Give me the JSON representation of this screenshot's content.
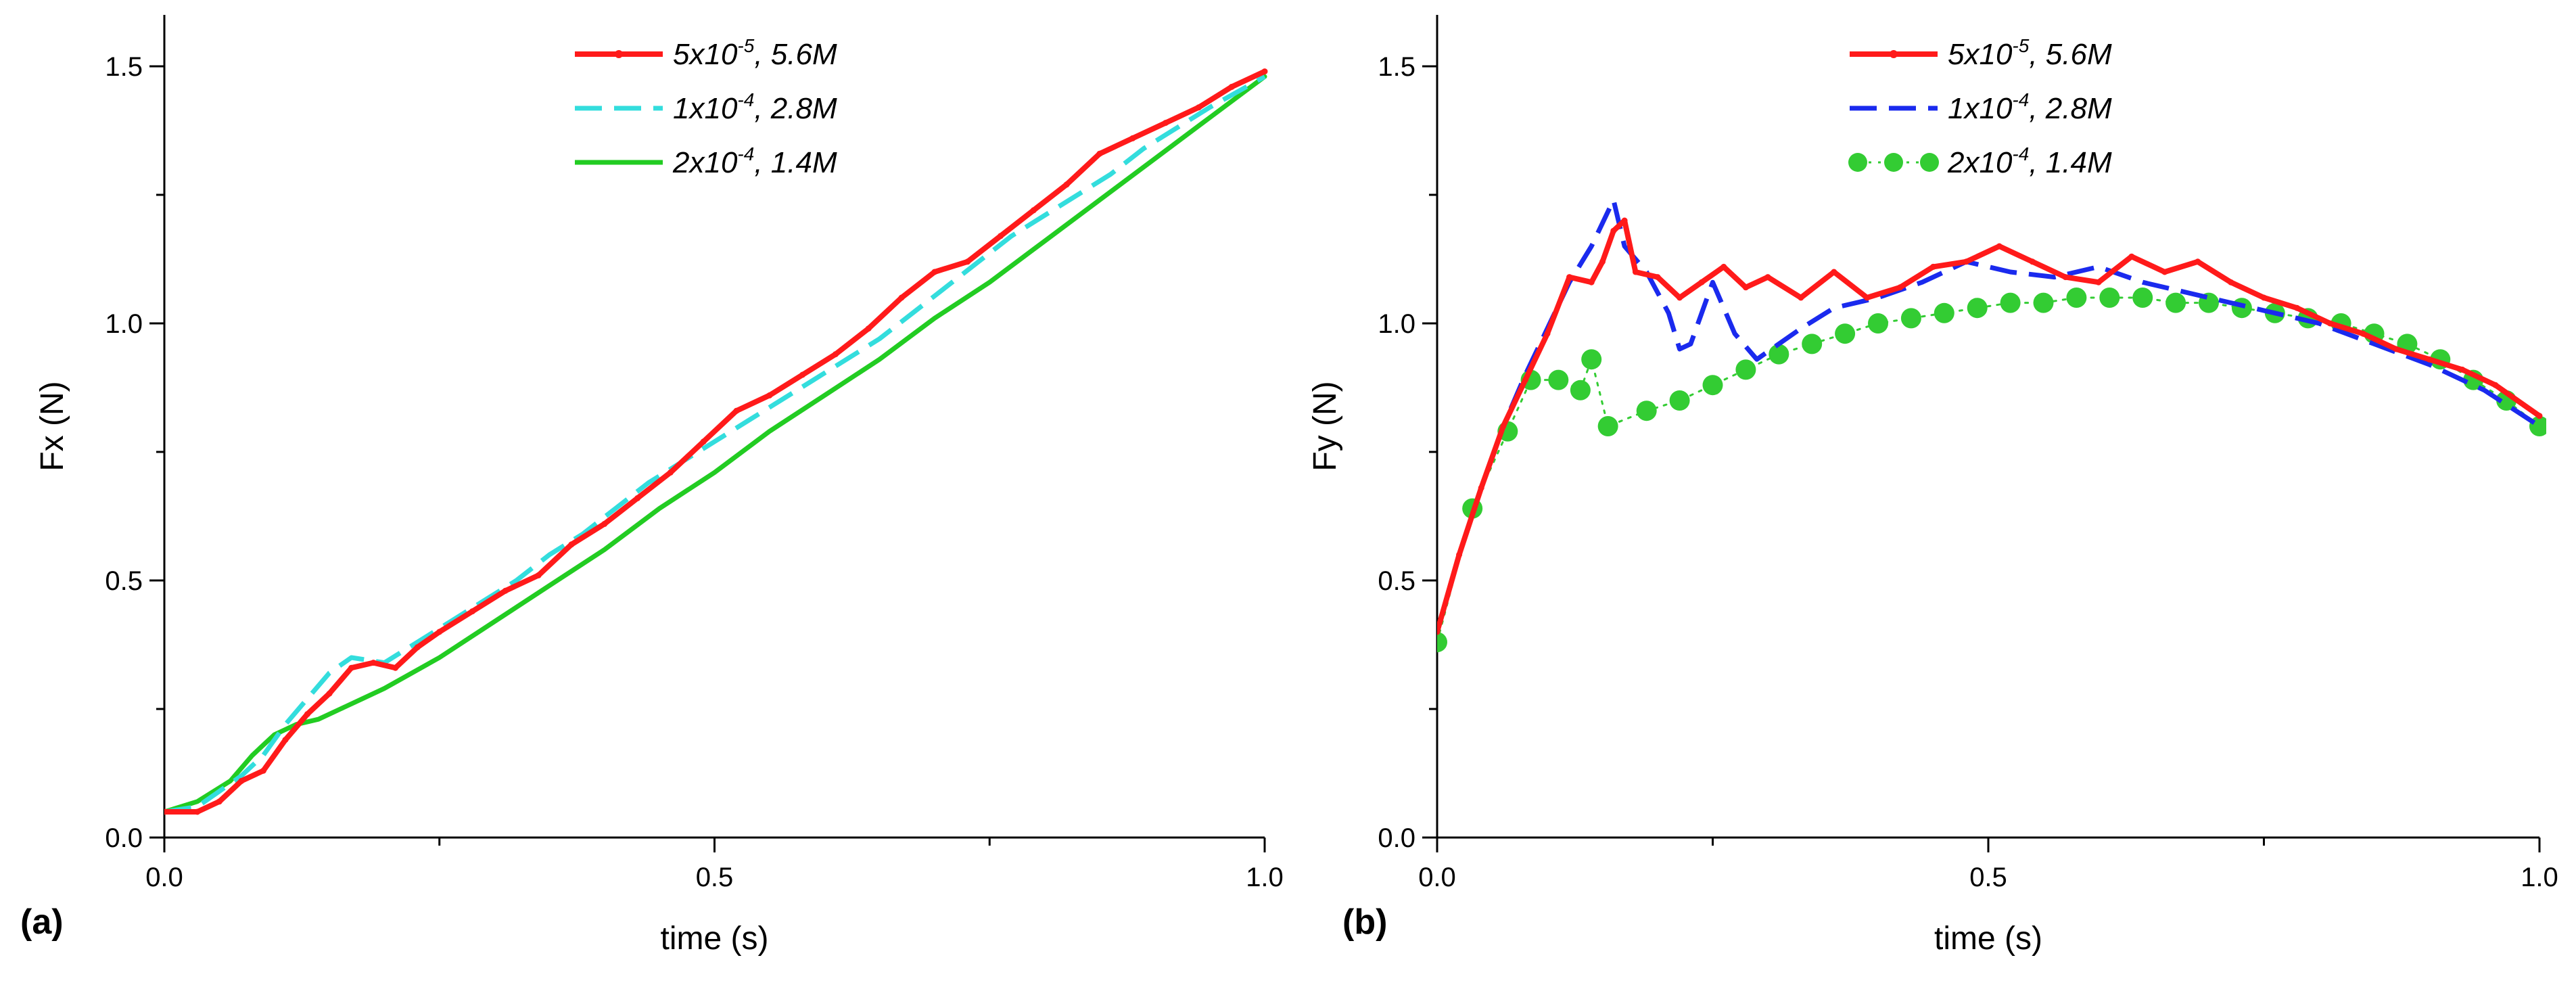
{
  "chart_data": [
    {
      "type": "line",
      "panel_label": "(a)",
      "xlabel": "time (s)",
      "ylabel": "Fx (N)",
      "xlim": [
        0.0,
        1.0
      ],
      "ylim": [
        0.0,
        1.6
      ],
      "xticks": [
        "0.0",
        "0.5",
        "1.0"
      ],
      "yticks": [
        "0.0",
        "0.5",
        "1.0",
        "1.5"
      ],
      "legend_position": "top-center",
      "series": [
        {
          "name": "5x10-5, 5.6M",
          "legend": {
            "base": "5x10",
            "sup": "-5",
            "rest": ", 5.6M"
          },
          "color": "#ff1a1a",
          "style": "solid-marker",
          "x": [
            0.0,
            0.03,
            0.05,
            0.07,
            0.09,
            0.11,
            0.13,
            0.15,
            0.17,
            0.19,
            0.21,
            0.23,
            0.25,
            0.28,
            0.31,
            0.34,
            0.37,
            0.4,
            0.43,
            0.46,
            0.49,
            0.52,
            0.55,
            0.58,
            0.61,
            0.64,
            0.67,
            0.7,
            0.73,
            0.76,
            0.79,
            0.82,
            0.85,
            0.88,
            0.91,
            0.94,
            0.97,
            1.0
          ],
          "y": [
            0.05,
            0.05,
            0.07,
            0.11,
            0.13,
            0.19,
            0.24,
            0.28,
            0.33,
            0.34,
            0.33,
            0.37,
            0.4,
            0.44,
            0.48,
            0.51,
            0.57,
            0.61,
            0.66,
            0.71,
            0.77,
            0.83,
            0.86,
            0.9,
            0.94,
            0.99,
            1.05,
            1.1,
            1.12,
            1.17,
            1.22,
            1.27,
            1.33,
            1.36,
            1.39,
            1.42,
            1.46,
            1.49
          ]
        },
        {
          "name": "1x10-4, 2.8M",
          "legend": {
            "base": "1x10",
            "sup": "-4",
            "rest": ", 2.8M"
          },
          "color": "#33dddd",
          "style": "dashed",
          "x": [
            0.0,
            0.03,
            0.05,
            0.07,
            0.09,
            0.11,
            0.13,
            0.15,
            0.17,
            0.2,
            0.23,
            0.26,
            0.29,
            0.32,
            0.35,
            0.38,
            0.41,
            0.44,
            0.47,
            0.5,
            0.53,
            0.56,
            0.59,
            0.62,
            0.65,
            0.68,
            0.71,
            0.74,
            0.77,
            0.8,
            0.83,
            0.86,
            0.89,
            0.92,
            0.95,
            1.0
          ],
          "y": [
            0.05,
            0.06,
            0.09,
            0.12,
            0.16,
            0.22,
            0.27,
            0.32,
            0.35,
            0.34,
            0.38,
            0.42,
            0.46,
            0.5,
            0.55,
            0.59,
            0.64,
            0.69,
            0.73,
            0.77,
            0.81,
            0.85,
            0.89,
            0.93,
            0.97,
            1.02,
            1.07,
            1.12,
            1.17,
            1.21,
            1.25,
            1.29,
            1.34,
            1.38,
            1.42,
            1.48
          ]
        },
        {
          "name": "2x10-4, 1.4M",
          "legend": {
            "base": "2x10",
            "sup": "-4",
            "rest": ", 1.4M"
          },
          "color": "#22cc22",
          "style": "solid",
          "x": [
            0.0,
            0.03,
            0.06,
            0.08,
            0.1,
            0.12,
            0.14,
            0.16,
            0.18,
            0.2,
            0.25,
            0.3,
            0.35,
            0.4,
            0.45,
            0.5,
            0.55,
            0.6,
            0.65,
            0.7,
            0.75,
            0.8,
            0.85,
            0.9,
            0.95,
            1.0
          ],
          "y": [
            0.05,
            0.07,
            0.11,
            0.16,
            0.2,
            0.22,
            0.23,
            0.25,
            0.27,
            0.29,
            0.35,
            0.42,
            0.49,
            0.56,
            0.64,
            0.71,
            0.79,
            0.86,
            0.93,
            1.01,
            1.08,
            1.16,
            1.24,
            1.32,
            1.4,
            1.48
          ]
        }
      ]
    },
    {
      "type": "line",
      "panel_label": "(b)",
      "xlabel": "time (s)",
      "ylabel": "Fy (N)",
      "xlim": [
        0.0,
        1.0
      ],
      "ylim": [
        0.0,
        1.6
      ],
      "xticks": [
        "0.0",
        "0.5",
        "1.0"
      ],
      "yticks": [
        "0.0",
        "0.5",
        "1.0",
        "1.5"
      ],
      "legend_position": "top-center",
      "series": [
        {
          "name": "5x10-5, 5.6M",
          "legend": {
            "base": "5x10",
            "sup": "-5",
            "rest": ", 5.6M"
          },
          "color": "#ff1a1a",
          "style": "solid-marker",
          "x": [
            0.0,
            0.02,
            0.04,
            0.06,
            0.08,
            0.1,
            0.12,
            0.14,
            0.15,
            0.16,
            0.17,
            0.18,
            0.2,
            0.22,
            0.24,
            0.26,
            0.28,
            0.3,
            0.33,
            0.36,
            0.39,
            0.42,
            0.45,
            0.48,
            0.51,
            0.54,
            0.57,
            0.6,
            0.63,
            0.66,
            0.69,
            0.72,
            0.75,
            0.78,
            0.81,
            0.84,
            0.87,
            0.9,
            0.93,
            0.96,
            1.0
          ],
          "y": [
            0.4,
            0.55,
            0.68,
            0.8,
            0.89,
            0.98,
            1.09,
            1.08,
            1.12,
            1.18,
            1.2,
            1.1,
            1.09,
            1.05,
            1.08,
            1.11,
            1.07,
            1.09,
            1.05,
            1.1,
            1.05,
            1.07,
            1.11,
            1.12,
            1.15,
            1.12,
            1.09,
            1.08,
            1.13,
            1.1,
            1.12,
            1.08,
            1.05,
            1.03,
            1.0,
            0.98,
            0.95,
            0.93,
            0.91,
            0.88,
            0.82
          ]
        },
        {
          "name": "1x10-4, 2.8M",
          "legend": {
            "base": "1x10",
            "sup": "-4",
            "rest": ", 2.8M"
          },
          "color": "#1a2aee",
          "style": "dashed",
          "x": [
            0.0,
            0.02,
            0.04,
            0.06,
            0.08,
            0.1,
            0.12,
            0.14,
            0.16,
            0.17,
            0.19,
            0.21,
            0.22,
            0.23,
            0.25,
            0.27,
            0.29,
            0.31,
            0.33,
            0.36,
            0.4,
            0.44,
            0.48,
            0.52,
            0.56,
            0.6,
            0.64,
            0.68,
            0.72,
            0.76,
            0.8,
            0.85,
            0.9,
            0.95,
            1.0
          ],
          "y": [
            0.4,
            0.55,
            0.68,
            0.8,
            0.9,
            0.99,
            1.08,
            1.15,
            1.24,
            1.15,
            1.1,
            1.02,
            0.95,
            0.96,
            1.08,
            0.98,
            0.93,
            0.96,
            0.99,
            1.03,
            1.05,
            1.08,
            1.12,
            1.1,
            1.09,
            1.11,
            1.08,
            1.06,
            1.04,
            1.02,
            1.0,
            0.96,
            0.92,
            0.87,
            0.8
          ]
        },
        {
          "name": "2x10-4, 1.4M",
          "legend": {
            "base": "2x10",
            "sup": "-4",
            "rest": ", 1.4M"
          },
          "color": "#33cc33",
          "style": "dotted-marker",
          "x": [
            0.0,
            0.032,
            0.064,
            0.085,
            0.11,
            0.13,
            0.14,
            0.155,
            0.19,
            0.22,
            0.25,
            0.28,
            0.31,
            0.34,
            0.37,
            0.4,
            0.43,
            0.46,
            0.49,
            0.52,
            0.55,
            0.58,
            0.61,
            0.64,
            0.67,
            0.7,
            0.73,
            0.76,
            0.79,
            0.82,
            0.85,
            0.88,
            0.91,
            0.94,
            0.97,
            1.0
          ],
          "y": [
            0.38,
            0.64,
            0.79,
            0.89,
            0.89,
            0.87,
            0.93,
            0.8,
            0.83,
            0.85,
            0.88,
            0.91,
            0.94,
            0.96,
            0.98,
            1.0,
            1.01,
            1.02,
            1.03,
            1.04,
            1.04,
            1.05,
            1.05,
            1.05,
            1.04,
            1.04,
            1.03,
            1.02,
            1.01,
            1.0,
            0.98,
            0.96,
            0.93,
            0.89,
            0.85,
            0.8
          ]
        }
      ]
    }
  ]
}
